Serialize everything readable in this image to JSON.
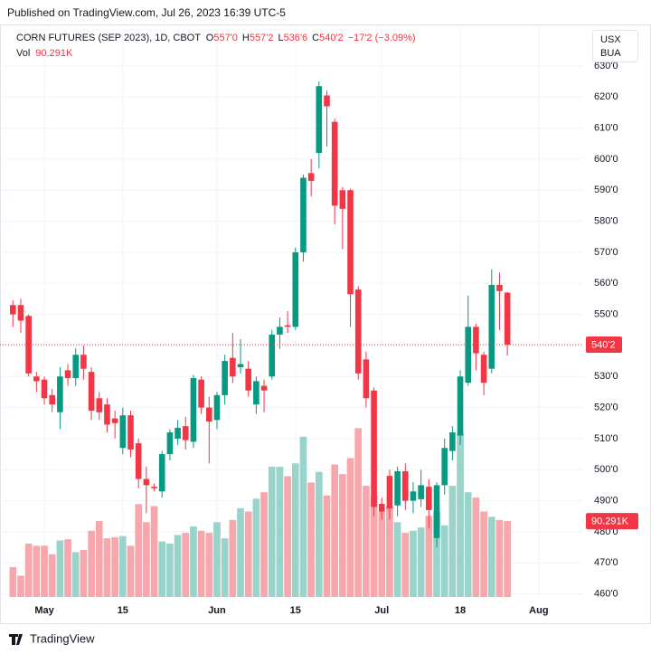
{
  "publisher": "Published on TradingView.com, Jul 26, 2023 16:39 UTC-5",
  "footer": "TradingView",
  "chart_data": {
    "type": "candlestick",
    "legend": {
      "symbol": "CORN FUTURES (SEP 2023), 1D, CBOT",
      "items": [
        {
          "key": "O",
          "value": "557'0"
        },
        {
          "key": "H",
          "value": "557'2"
        },
        {
          "key": "L",
          "value": "536'6"
        },
        {
          "key": "C",
          "value": "540'2"
        }
      ],
      "change": "−17'2 (−3.09%)"
    },
    "volume_name": "Vol",
    "volume_label": "90.291K",
    "currency": "USX",
    "unit": "BUA",
    "last_price": {
      "value": 540.25,
      "label": "540'2"
    },
    "up_color": "#089981",
    "down_color": "#f23645",
    "volume_up_color": "#9ad3c9",
    "volume_down_color": "#f7a6ac",
    "grid": true,
    "categories": [
      null,
      null,
      null,
      null,
      "May",
      null,
      null,
      null,
      null,
      null,
      null,
      null,
      null,
      null,
      "15",
      null,
      null,
      null,
      null,
      null,
      null,
      null,
      null,
      null,
      null,
      null,
      "Jun",
      null,
      null,
      null,
      null,
      null,
      null,
      null,
      null,
      null,
      "15",
      null,
      null,
      null,
      null,
      null,
      null,
      null,
      null,
      null,
      null,
      "Jul",
      null,
      null,
      null,
      null,
      null,
      null,
      null,
      null,
      null,
      "18",
      null,
      null,
      null,
      null,
      null,
      null,
      null,
      null,
      null,
      "Aug"
    ],
    "open": [
      553,
      553,
      549.5,
      530,
      529,
      524,
      518.5,
      532,
      529.5,
      537,
      531.5,
      523,
      521,
      516.5,
      507,
      517.5,
      508.5,
      497,
      494.5,
      493,
      505,
      510,
      514,
      509,
      529,
      520,
      516,
      524,
      536,
      533,
      532.5,
      521,
      527,
      530,
      543.5,
      546.5,
      546,
      570,
      595.5,
      602,
      620.5,
      612,
      590,
      590,
      558,
      535.5,
      525.5,
      489,
      498,
      488.5,
      499.5,
      490,
      490.5,
      494.5,
      478,
      495,
      506,
      511,
      528,
      546,
      537,
      532.5,
      559.5,
      557,
      null,
      null,
      null,
      null
    ],
    "high": [
      554.5,
      555,
      550,
      531.5,
      530,
      526,
      533,
      534,
      539,
      540,
      533,
      525,
      523,
      519,
      520,
      519,
      510,
      501,
      495.5,
      506,
      513,
      516,
      517,
      530.5,
      530,
      523.5,
      525,
      537,
      544,
      542,
      535,
      530,
      529,
      545,
      549,
      551,
      571.5,
      595,
      600,
      625,
      622,
      613,
      591,
      590.5,
      559,
      538,
      526.5,
      491,
      500,
      501,
      502,
      496,
      500,
      497,
      496,
      510,
      514,
      532,
      556,
      547,
      538,
      564.5,
      563.5,
      557.25,
      null,
      null,
      null,
      null
    ],
    "low": [
      546,
      544,
      530,
      525,
      521,
      518.5,
      513,
      527,
      527,
      529,
      516,
      516,
      512,
      510,
      505,
      504,
      494,
      486,
      493,
      491,
      503,
      508,
      506.5,
      507,
      518,
      502,
      513,
      521,
      528,
      531,
      523.5,
      518,
      518.5,
      529,
      539,
      544,
      545,
      567,
      588,
      597,
      604,
      579,
      571,
      546,
      529,
      520,
      485,
      484,
      484,
      485,
      487,
      486,
      488,
      481,
      475,
      492,
      503,
      508,
      527,
      532,
      524,
      531,
      545,
      536.75,
      null,
      null,
      null,
      null
    ],
    "close": [
      550,
      548,
      531,
      528.5,
      523,
      521,
      530,
      529.5,
      537,
      532.5,
      519,
      518.5,
      514.5,
      515,
      517.5,
      506.5,
      497,
      495,
      494,
      505,
      512,
      513.5,
      509.5,
      529.5,
      520,
      515.5,
      524,
      535,
      530,
      534,
      525.5,
      528.5,
      525.5,
      543.5,
      546,
      546,
      570,
      594,
      593,
      623.5,
      617,
      585,
      584,
      556.5,
      531,
      523,
      488,
      486.5,
      487.5,
      499.5,
      490,
      493,
      495,
      487,
      495,
      507,
      512,
      530,
      546,
      537.5,
      528,
      559.5,
      557.5,
      540.25,
      null,
      null,
      null,
      null
    ],
    "volume": [
      35600,
      25400,
      63600,
      61000,
      61000,
      50900,
      67400,
      68700,
      53400,
      56000,
      78800,
      90300,
      69900,
      71200,
      72500,
      61000,
      110600,
      89000,
      108100,
      66100,
      63600,
      73800,
      76300,
      83900,
      78800,
      76300,
      89000,
      69900,
      91600,
      105600,
      101700,
      117000,
      124600,
      155100,
      155100,
      143700,
      159000,
      190800,
      136100,
      148800,
      120800,
      157700,
      146200,
      165300,
      200900,
      132300,
      120800,
      101700,
      108100,
      89000,
      76300,
      78800,
      82700,
      96600,
      101700,
      85200,
      132300,
      195000,
      124600,
      118300,
      101700,
      95400,
      91600,
      90291,
      null,
      null,
      null,
      null
    ],
    "ylim": [
      459,
      642.5
    ],
    "volume_ylim": [
      0,
      678000
    ],
    "yticks": [
      {
        "value": 460,
        "label": "460'0"
      },
      {
        "value": 470,
        "label": "470'0"
      },
      {
        "value": 480,
        "label": "480'0"
      },
      {
        "value": 490,
        "label": "490'0"
      },
      {
        "value": 500,
        "label": "500'0"
      },
      {
        "value": 510,
        "label": "510'0"
      },
      {
        "value": 520,
        "label": "520'0"
      },
      {
        "value": 530,
        "label": "530'0"
      },
      {
        "value": 540,
        "label": "540'0"
      },
      {
        "value": 550,
        "label": "550'0"
      },
      {
        "value": 560,
        "label": "560'0"
      },
      {
        "value": 570,
        "label": "570'0"
      },
      {
        "value": 580,
        "label": "580'0"
      },
      {
        "value": 590,
        "label": "590'0"
      },
      {
        "value": 600,
        "label": "600'0"
      },
      {
        "value": 610,
        "label": "610'0"
      },
      {
        "value": 620,
        "label": "620'0"
      },
      {
        "value": 630,
        "label": "630'0"
      }
    ]
  }
}
